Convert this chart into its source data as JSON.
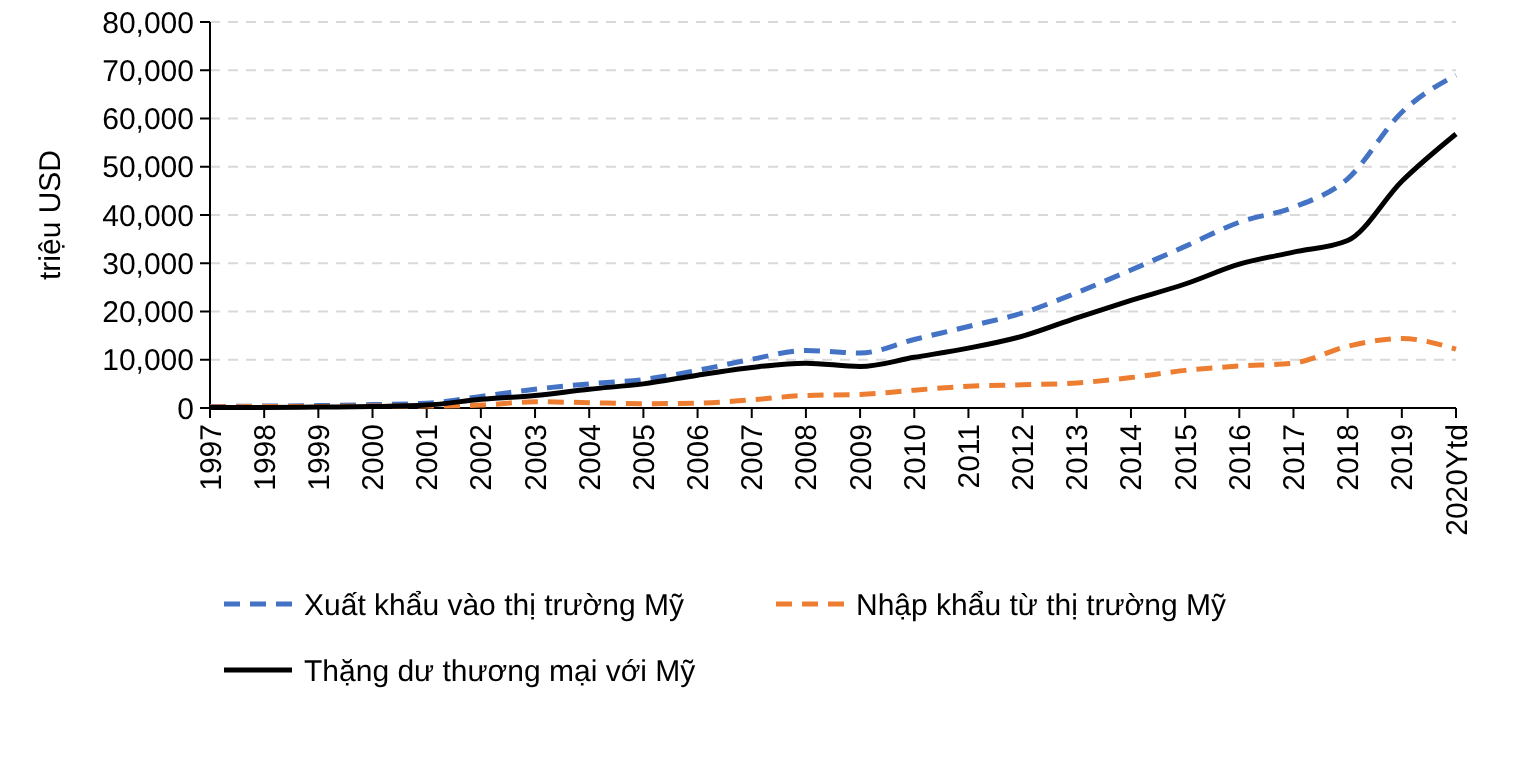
{
  "chart_data": {
    "type": "line",
    "ylabel": "triệu USD",
    "categories": [
      "1997",
      "1998",
      "1999",
      "2000",
      "2001",
      "2002",
      "2003",
      "2004",
      "2005",
      "2006",
      "2007",
      "2008",
      "2009",
      "2010",
      "2011",
      "2012",
      "2013",
      "2014",
      "2015",
      "2016",
      "2017",
      "2018",
      "2019",
      "2020Ytd"
    ],
    "series": [
      {
        "name": "Xuất khẩu vào thị trường Mỹ",
        "color": "#4472c4",
        "line_style": "dashed",
        "values": [
          300,
          400,
          500,
          700,
          1000,
          2400,
          3900,
          5000,
          5900,
          7800,
          10100,
          11900,
          11400,
          14200,
          16900,
          19700,
          23900,
          28600,
          33500,
          38500,
          41600,
          47500,
          61300,
          69000
        ]
      },
      {
        "name": "Nhập khẩu từ thị trường Mỹ",
        "color": "#ed7d31",
        "line_style": "dashed",
        "values": [
          200,
          300,
          300,
          400,
          400,
          600,
          1300,
          1100,
          900,
          1000,
          1700,
          2600,
          2800,
          3700,
          4500,
          4800,
          5200,
          6300,
          7800,
          8700,
          9300,
          12800,
          14400,
          12200
        ]
      },
      {
        "name": "Thặng dư thương mại với Mỹ",
        "color": "#000000",
        "line_style": "solid",
        "values": [
          100,
          100,
          200,
          300,
          600,
          1800,
          2600,
          3900,
          5000,
          6800,
          8400,
          9300,
          8600,
          10500,
          12400,
          14900,
          18700,
          22300,
          25700,
          29800,
          32300,
          34700,
          47000,
          56800
        ]
      }
    ],
    "ylim": [
      0,
      80000
    ],
    "yticks": [
      {
        "value": 0,
        "label": "0"
      },
      {
        "value": 10000,
        "label": "10,000"
      },
      {
        "value": 20000,
        "label": "20,000"
      },
      {
        "value": 30000,
        "label": "30,000"
      },
      {
        "value": 40000,
        "label": "40,000"
      },
      {
        "value": 50000,
        "label": "50,000"
      },
      {
        "value": 60000,
        "label": "60,000"
      },
      {
        "value": 70000,
        "label": "70,000"
      },
      {
        "value": 80000,
        "label": "80,000"
      }
    ],
    "grid": "y",
    "legend": "bottom",
    "marker": "none"
  }
}
